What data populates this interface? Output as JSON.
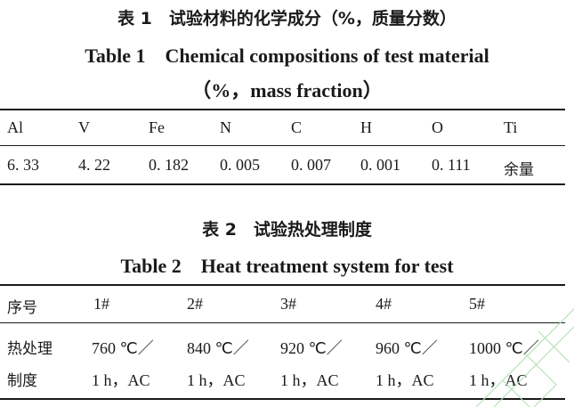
{
  "table1": {
    "caption_cn": "表 1　试验材料的化学成分（%，质量分数）",
    "caption_en_line1": "Table 1　Chemical compositions of test material",
    "caption_en_line2": "（%，mass fraction）",
    "headers": [
      "Al",
      "V",
      "Fe",
      "N",
      "C",
      "H",
      "O",
      "Ti"
    ],
    "values": [
      "6. 33",
      "4. 22",
      "0. 182",
      "0. 005",
      "0. 007",
      "0. 001",
      "0. 111",
      "余量"
    ]
  },
  "table2": {
    "caption_cn": "表 2　试验热处理制度",
    "caption_en": "Table 2　Heat treatment system for test",
    "header_label": "序号",
    "headers": [
      "1#",
      "2#",
      "3#",
      "4#",
      "5#"
    ],
    "row_label_line1": "热处理",
    "row_label_line2": "制度",
    "temps": [
      "760 ℃／",
      "840 ℃／",
      "920 ℃／",
      "960 ℃／",
      "1000 ℃／"
    ],
    "times": [
      "1 h，AC",
      "1 h，AC",
      "1 h，AC",
      "1 h，AC",
      "1 h，AC"
    ]
  },
  "colors": {
    "text": "#1a1a1a",
    "watermark": "#b8e2b8"
  }
}
